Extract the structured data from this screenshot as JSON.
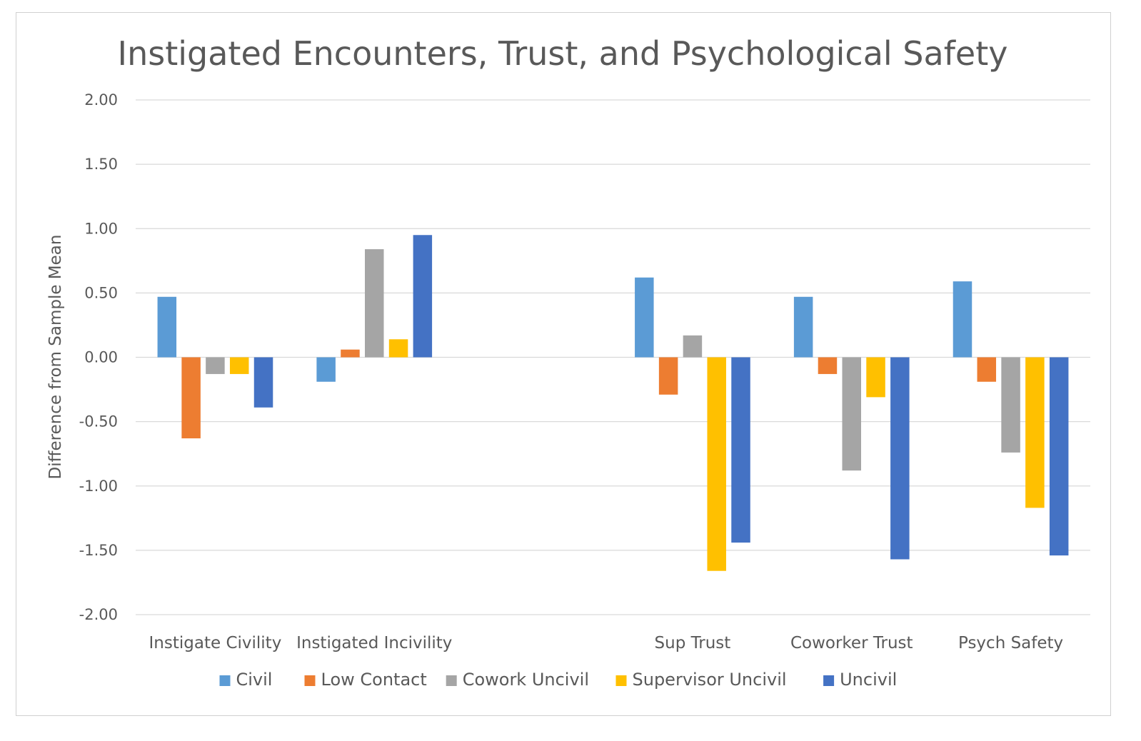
{
  "chart_data": {
    "type": "bar",
    "title": "Instigated Encounters, Trust, and Psychological Safety",
    "xlabel": "",
    "ylabel": "Difference from Sample Mean",
    "ylim": [
      -2.0,
      2.0
    ],
    "yticks": [
      "2.00",
      "1.50",
      "1.00",
      "0.50",
      "0.00",
      "-0.50",
      "-1.00",
      "-1.50",
      "-2.00"
    ],
    "ytick_values": [
      2.0,
      1.5,
      1.0,
      0.5,
      0.0,
      -0.5,
      -1.0,
      -1.5,
      -2.0
    ],
    "grid": true,
    "legend_position": "bottom",
    "categories": [
      "Instigate Civility",
      "Instigated Incivility",
      "",
      "Sup Trust",
      "Coworker Trust",
      "Psych Safety"
    ],
    "series": [
      {
        "name": "Civil",
        "color": "#5b9bd5",
        "values": [
          0.47,
          -0.19,
          null,
          0.62,
          0.47,
          0.59
        ]
      },
      {
        "name": "Low Contact",
        "color": "#ed7d31",
        "values": [
          -0.63,
          0.06,
          null,
          -0.29,
          -0.13,
          -0.19
        ]
      },
      {
        "name": "Cowork Uncivil",
        "color": "#a5a5a5",
        "values": [
          -0.13,
          0.84,
          null,
          0.17,
          -0.88,
          -0.74
        ]
      },
      {
        "name": "Supervisor Uncivil",
        "color": "#ffc000",
        "values": [
          -0.13,
          0.14,
          null,
          -1.66,
          -0.31,
          -1.17
        ]
      },
      {
        "name": "Uncivil",
        "color": "#4472c4",
        "values": [
          -0.39,
          0.95,
          null,
          -1.44,
          -1.57,
          -1.54
        ]
      }
    ]
  }
}
